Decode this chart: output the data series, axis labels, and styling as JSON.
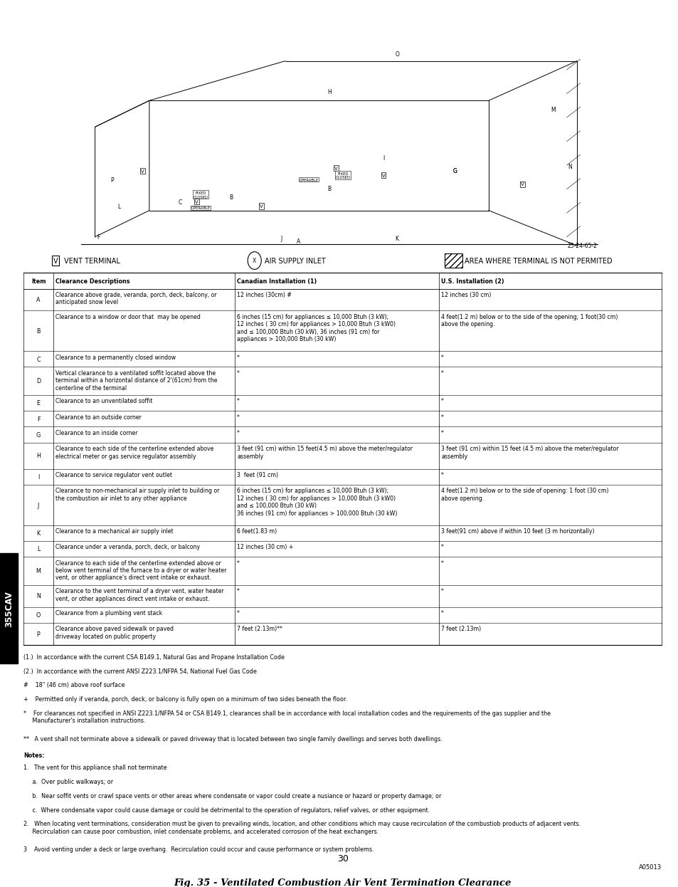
{
  "page_bg": "#ffffff",
  "fig_width": 9.54,
  "fig_height": 12.35,
  "dpi": 100,
  "sidebar_text": "355CAV",
  "table_header": [
    "Item",
    "Clearance Descriptions",
    "Canadian Installation (1)",
    "U.S. Installation (2)"
  ],
  "table_rows": [
    {
      "item": "A",
      "desc": "Clearance above grade, veranda, porch, deck, balcony, or\nanticipated snow level",
      "canada": "12 inches (30cm) #",
      "us": "12 inches (30 cm)"
    },
    {
      "item": "B",
      "desc": "Clearance to a window or door that  may be opened",
      "canada": "6 inches (15 cm) for appliances ≤ 10,000 Btuh (3 kW);\n12 inches ( 30 cm) for appliances > 10,000 Btuh (3 kW0)\nand ≤ 100,000 Btuh (30 kW), 36 inches (91 cm) for\nappliances > 100,000 Btuh (30 kW)",
      "us": "4 feet(1.2 m) below or to the side of the opening; 1 foot(30 cm)\nabove the opening."
    },
    {
      "item": "C",
      "desc": "Clearance to a permanently closed window",
      "canada": "*",
      "us": "*"
    },
    {
      "item": "D",
      "desc": "Vertical clearance to a ventilated soffit located above the\nterminal within a horizontal distance of 2'(61cm) from the\ncenterline of the terminal",
      "canada": "*",
      "us": "*"
    },
    {
      "item": "E",
      "desc": "Clearance to an unventilated soffit",
      "canada": "*",
      "us": "*"
    },
    {
      "item": "F",
      "desc": "Clearance to an outside corner",
      "canada": "*",
      "us": "*"
    },
    {
      "item": "G",
      "desc": "Clearance to an inside corner",
      "canada": "*",
      "us": "*"
    },
    {
      "item": "H",
      "desc": "Clearance to each side of the centerline extended above\nelectrical meter or gas service regulator assembly",
      "canada": "3 feet (91 cm) within 15 feet(4.5 m) above the meter/regulator\nassembly",
      "us": "3 feet (91 cm) within 15 feet (4.5 m) above the meter/regulator\nassembly"
    },
    {
      "item": "I",
      "desc": "Clearance to service regulator vent outlet",
      "canada": "3  feet (91 cm)",
      "us": "*"
    },
    {
      "item": "J",
      "desc": "Clearance to non-mechanical air supply inlet to building or\nthe combustion air inlet to any other appliance",
      "canada": "6 inches (15 cm) for appliances ≤ 10,000 Btuh (3 kW);\n12 inches ( 30 cm) for appliances > 10,000 Btuh (3 kW0)\nand ≤ 100,000 Btuh (30 kW)\n36 inches (91 cm) for appliances > 100,000 Btuh (30 kW)",
      "us": "4 feet(1.2 m) below or to the side of opening: 1 foot (30 cm)\nabove opening."
    },
    {
      "item": "K",
      "desc": "Clearance to a mechanical air supply inlet",
      "canada": "6 feet(1.83 m)",
      "us": "3 feet(91 cm) above if within 10 feet (3 m horizontally)"
    },
    {
      "item": "L",
      "desc": "Clearance under a veranda, porch, deck, or balcony",
      "canada": "12 inches (30 cm) +",
      "us": "*"
    },
    {
      "item": "M",
      "desc": "Clearance to each side of the centerline extended above or\nbelow vent terminal of the furnace to a dryer or water heater\nvent, or other appliance's direct vent intake or exhaust.",
      "canada": "*",
      "us": "*"
    },
    {
      "item": "N",
      "desc": "Clearance to the vent terminal of a dryer vent, water heater\nvent, or other appliances direct vent intake or exhaust.",
      "canada": "*",
      "us": "*"
    },
    {
      "item": "O",
      "desc": "Clearance from a plumbing vent stack",
      "canada": "*",
      "us": "*"
    },
    {
      "item": "P",
      "desc": "Clearance above paved sidewalk or paved\ndriveway located on public property",
      "canada": "7 feet (2.13m)**",
      "us": "7 feet (2.13m)"
    }
  ],
  "footnotes": [
    "(1.)  In accordance with the current CSA B149.1, Natural Gas and Propane Installation Code",
    "(2.)  In accordance with the current ANSI Z223.1/NFPA 54, National Fuel Gas Code",
    "#    18\" (46 cm) above roof surface",
    "+    Permitted only if veranda, porch, deck, or balcony is fully open on a minimum of two sides beneath the floor.",
    "*    For clearances not specified in ANSI Z223.1/NFPA 54 or CSA B149.1, clearances shall be in accordance with local installation codes and the requirements of the gas supplier and the\n     Manufacturer's installation instructions.",
    "**   A vent shall not terminate above a sidewalk or paved driveway that is located between two single family dwellings and serves both dwellings."
  ],
  "notes_header": "Notes:",
  "notes": [
    "1.   The vent for this appliance shall not terminate",
    "     a.  Over public walkways; or",
    "     b.  Near soffit vents or crawl space vents or other areas where condensate or vapor could create a nusiance or hazard or property damage; or",
    "     c.  Where condensate vapor could cause damage or could be detrimental to the operation of regulators, relief valves, or other equipment.",
    "2.   When locating vent terminations, consideration must be given to prevailing winds, location, and other conditions which may cause recirculation of the combustiob products of adjacent vents.\n     Recirculation can cause poor combustion, inlet condensate problems, and accelerated corrosion of the heat exchangers.",
    "3    Avoid venting under a deck or large overhang.  Recirculation could occur and cause performance or system problems."
  ],
  "part_number": "A05013",
  "figure_caption": "Fig. 35 - Ventilated Combustion Air Vent Termination Clearance",
  "page_number": "30"
}
